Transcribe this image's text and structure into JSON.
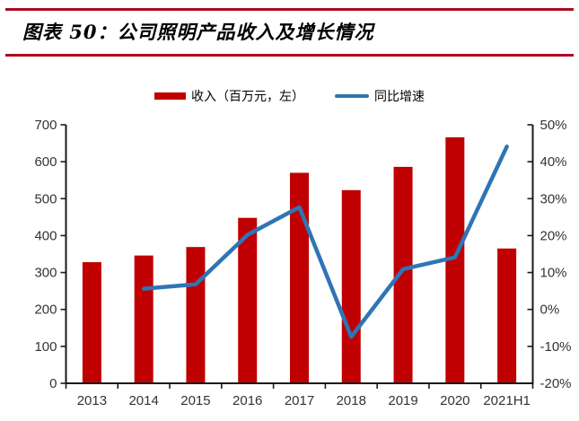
{
  "header": {
    "title": "图表 50：公司照明产品收入及增长情况"
  },
  "legend": {
    "items": [
      {
        "label": "收入（百万元，左）",
        "swatch": "bar",
        "color": "#c00000"
      },
      {
        "label": "同比增速",
        "swatch": "line",
        "color": "#2e75b6"
      }
    ]
  },
  "chart_data": {
    "type": "bar+line",
    "title": "公司照明产品收入及增长情况",
    "categories": [
      "2013",
      "2014",
      "2015",
      "2016",
      "2017",
      "2018",
      "2019",
      "2020",
      "2021H1"
    ],
    "series": [
      {
        "name": "收入（百万元，左）",
        "type": "bar",
        "axis": "left",
        "color": "#c00000",
        "values": [
          328,
          346,
          369,
          448,
          570,
          523,
          586,
          666,
          365
        ]
      },
      {
        "name": "同比增速",
        "type": "line",
        "axis": "right",
        "color": "#2e75b6",
        "values": [
          null,
          5.6,
          6.8,
          20.2,
          27.7,
          -7.4,
          10.9,
          14.1,
          44.1
        ]
      }
    ],
    "left_axis": {
      "min": 0,
      "max": 700,
      "step": 100,
      "tick_labels": [
        "0",
        "100",
        "200",
        "300",
        "400",
        "500",
        "600",
        "700"
      ]
    },
    "right_axis": {
      "min": -20,
      "max": 50,
      "step": 10,
      "tick_labels": [
        "-20%",
        "-10%",
        "0%",
        "10%",
        "20%",
        "30%",
        "40%",
        "50%"
      ]
    },
    "grid": false,
    "legend_position": "top"
  },
  "colors": {
    "accent_rule": "#ab0a24",
    "bar": "#c00000",
    "line": "#2e75b6",
    "axis": "#1a1a1a",
    "tick_text": "#333333"
  }
}
